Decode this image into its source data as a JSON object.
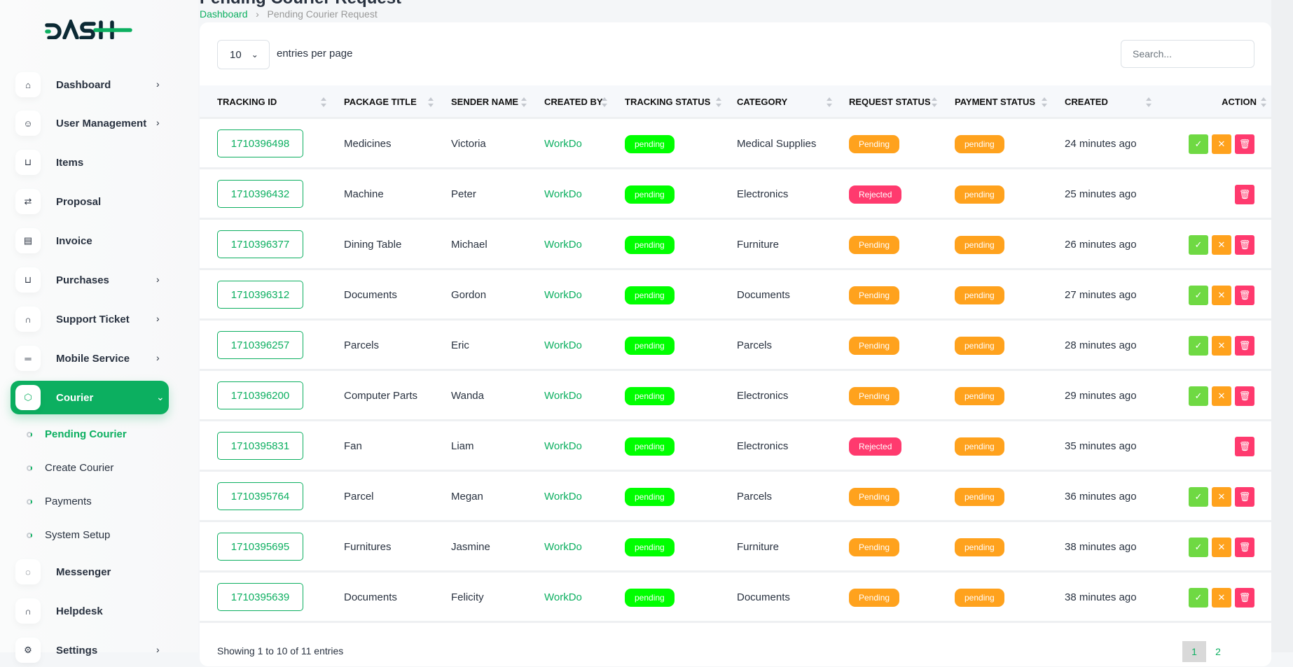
{
  "brand": {
    "logo_text": "DASH",
    "accent": "#0caf60"
  },
  "page": {
    "title": "Pending Courier Request",
    "breadcrumb": [
      "Dashboard",
      "Pending Courier Request"
    ]
  },
  "sidebar": {
    "items": [
      {
        "label": "Dashboard",
        "icon": "home-icon",
        "chevron": true
      },
      {
        "label": "User Management",
        "icon": "users-icon",
        "chevron": true
      },
      {
        "label": "Items",
        "icon": "cart-icon",
        "chevron": false
      },
      {
        "label": "Proposal",
        "icon": "swap-icon",
        "chevron": false
      },
      {
        "label": "Invoice",
        "icon": "file-icon",
        "chevron": false
      },
      {
        "label": "Purchases",
        "icon": "cart-icon",
        "chevron": true
      },
      {
        "label": "Support Ticket",
        "icon": "headphones-icon",
        "chevron": true
      },
      {
        "label": "Mobile Service",
        "icon": "menu-icon",
        "chevron": true
      },
      {
        "label": "Courier",
        "icon": "box-icon",
        "chevron": true,
        "active": true
      },
      {
        "label": "Messenger",
        "icon": "chat-icon",
        "chevron": false
      },
      {
        "label": "Helpdesk",
        "icon": "headphones-icon",
        "chevron": false
      },
      {
        "label": "Settings",
        "icon": "gear-icon",
        "chevron": true
      }
    ],
    "courier_sub": [
      {
        "label": "Pending Courier",
        "active": true
      },
      {
        "label": "Create Courier"
      },
      {
        "label": "Payments"
      },
      {
        "label": "System Setup"
      }
    ]
  },
  "table_controls": {
    "page_size": "10",
    "entries_label": "entries per page",
    "search_placeholder": "Search..."
  },
  "columns": [
    "TRACKING ID",
    "PACKAGE TITLE",
    "SENDER NAME",
    "CREATED BY",
    "TRACKING STATUS",
    "CATEGORY",
    "REQUEST STATUS",
    "PAYMENT STATUS",
    "CREATED",
    "ACTION"
  ],
  "rows": [
    {
      "tracking_id": "1710396498",
      "package": "Medicines",
      "sender": "Victoria",
      "created_by": "WorkDo",
      "tracking_status": "pending",
      "category": "Medical Supplies",
      "request_status": "Pending",
      "payment_status": "pending",
      "created": "24 minutes ago"
    },
    {
      "tracking_id": "1710396432",
      "package": "Machine",
      "sender": "Peter",
      "created_by": "WorkDo",
      "tracking_status": "pending",
      "category": "Electronics",
      "request_status": "Rejected",
      "payment_status": "pending",
      "created": "25 minutes ago"
    },
    {
      "tracking_id": "1710396377",
      "package": "Dining Table",
      "sender": "Michael",
      "created_by": "WorkDo",
      "tracking_status": "pending",
      "category": "Furniture",
      "request_status": "Pending",
      "payment_status": "pending",
      "created": "26 minutes ago"
    },
    {
      "tracking_id": "1710396312",
      "package": "Documents",
      "sender": "Gordon",
      "created_by": "WorkDo",
      "tracking_status": "pending",
      "category": "Documents",
      "request_status": "Pending",
      "payment_status": "pending",
      "created": "27 minutes ago"
    },
    {
      "tracking_id": "1710396257",
      "package": "Parcels",
      "sender": "Eric",
      "created_by": "WorkDo",
      "tracking_status": "pending",
      "category": "Parcels",
      "request_status": "Pending",
      "payment_status": "pending",
      "created": "28 minutes ago"
    },
    {
      "tracking_id": "1710396200",
      "package": "Computer Parts",
      "sender": "Wanda",
      "created_by": "WorkDo",
      "tracking_status": "pending",
      "category": "Electronics",
      "request_status": "Pending",
      "payment_status": "pending",
      "created": "29 minutes ago"
    },
    {
      "tracking_id": "1710395831",
      "package": "Fan",
      "sender": "Liam",
      "created_by": "WorkDo",
      "tracking_status": "pending",
      "category": "Electronics",
      "request_status": "Rejected",
      "payment_status": "pending",
      "created": "35 minutes ago"
    },
    {
      "tracking_id": "1710395764",
      "package": "Parcel",
      "sender": "Megan",
      "created_by": "WorkDo",
      "tracking_status": "pending",
      "category": "Parcels",
      "request_status": "Pending",
      "payment_status": "pending",
      "created": "36 minutes ago"
    },
    {
      "tracking_id": "1710395695",
      "package": "Furnitures",
      "sender": "Jasmine",
      "created_by": "WorkDo",
      "tracking_status": "pending",
      "category": "Furniture",
      "request_status": "Pending",
      "payment_status": "pending",
      "created": "38 minutes ago"
    },
    {
      "tracking_id": "1710395639",
      "package": "Documents",
      "sender": "Felicity",
      "created_by": "WorkDo",
      "tracking_status": "pending",
      "category": "Documents",
      "request_status": "Pending",
      "payment_status": "pending",
      "created": "38 minutes ago"
    }
  ],
  "footer": {
    "showing": "Showing 1 to 10 of 11 entries",
    "pages": [
      "1",
      "2"
    ],
    "current_page": "1"
  },
  "colors": {
    "tracking_pending": "#00ff00",
    "pending": "#ffa21d",
    "rejected": "#ff3a6e",
    "approve": "#6fd943",
    "reject": "#ffa21d",
    "delete": "#ff3a6e"
  }
}
